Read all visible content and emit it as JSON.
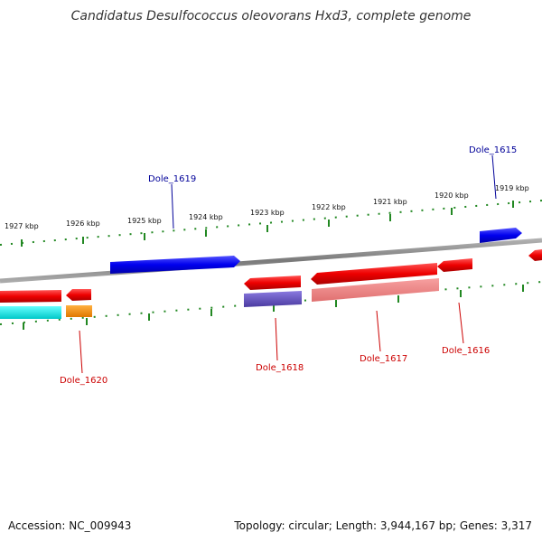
{
  "title": "Candidatus Desulfococcus oleovorans Hxd3, complete genome",
  "footer": {
    "accession": "Accession: NC_009943",
    "summary": "Topology: circular; Length: 3,944,167 bp; Genes: 3,317"
  },
  "ticks": [
    "1927 kbp",
    "1926 kbp",
    "1925 kbp",
    "1924 kbp",
    "1923 kbp",
    "1922 kbp",
    "1921 kbp",
    "1920 kbp",
    "1919 kbp"
  ],
  "genes": [
    {
      "label": "Dole_1615",
      "strand": "forward",
      "label_color": "#000099"
    },
    {
      "label": "Dole_1616",
      "strand": "reverse",
      "label_color": "#cc0000"
    },
    {
      "label": "Dole_1617",
      "strand": "reverse",
      "label_color": "#cc0000"
    },
    {
      "label": "Dole_1618",
      "strand": "reverse",
      "label_color": "#cc0000"
    },
    {
      "label": "Dole_1619",
      "strand": "forward",
      "label_color": "#000099"
    },
    {
      "label": "Dole_1620",
      "strand": "reverse",
      "label_color": "#cc0000"
    }
  ],
  "colors": {
    "backbone": "#888888",
    "forward_cds": "#0000ee",
    "reverse_cds": "#ee0000",
    "rna": "#6a5acd",
    "pseudo": "#f08080",
    "trna": "#00e5e5",
    "misc": "#ff8c00",
    "tick": "#228822"
  }
}
